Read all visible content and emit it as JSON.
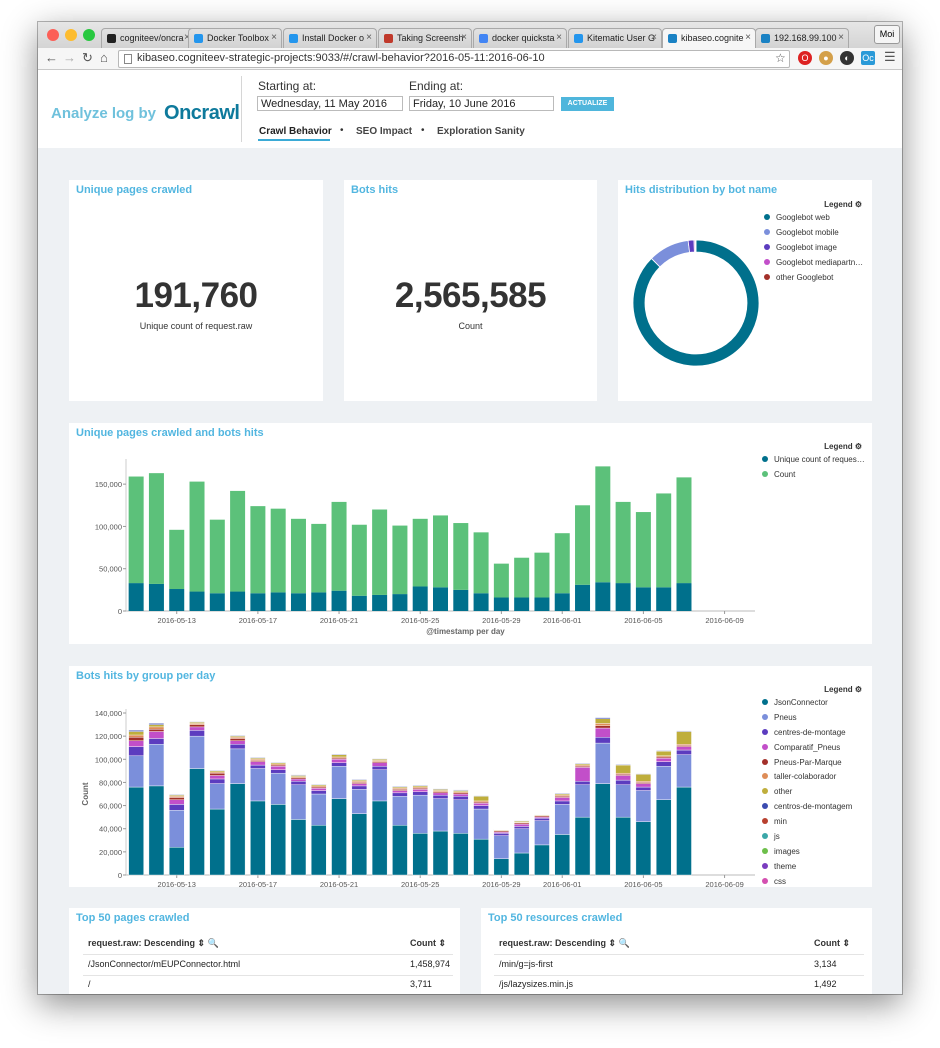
{
  "browser": {
    "tabs": [
      {
        "label": "cogniteev/oncra",
        "color": "#222222"
      },
      {
        "label": "Docker Toolbox",
        "color": "#2496ed"
      },
      {
        "label": "Install Docker o",
        "color": "#2496ed"
      },
      {
        "label": "Taking Screensh",
        "color": "#c0392b"
      },
      {
        "label": "docker quicksta",
        "color": "#4285f4"
      },
      {
        "label": "Kitematic User G",
        "color": "#2496ed"
      },
      {
        "label": "kibaseo.cognite",
        "color": "#1a82c4"
      },
      {
        "label": "192.168.99.100",
        "color": "#1a82c4"
      }
    ],
    "profile": "Moi",
    "url": "kibaseo.cogniteev-strategic-projects:9033/#/crawl-behavior?2016-05-11:2016-06-10"
  },
  "header": {
    "logo_prefix": "Analyze log by",
    "logo_brand": "Oncrawl",
    "start_label": "Starting at:",
    "start_value": "Wednesday, 11 May 2016",
    "end_label": "Ending at:",
    "end_value": "Friday, 10 June 2016",
    "actualize_label": "ACTUALIZE",
    "nav": [
      "Crawl Behavior",
      "SEO Impact",
      "Exploration Sanity"
    ]
  },
  "panels": {
    "unique_pages": {
      "title": "Unique pages crawled",
      "value": "191,760",
      "subtitle": "Unique count of request.raw"
    },
    "bots_hits": {
      "title": "Bots hits",
      "value": "2,565,585",
      "subtitle": "Count"
    },
    "hits_distribution": {
      "title": "Hits distribution by bot name",
      "legend_title": "Legend ⚙",
      "legend": [
        {
          "name": "Googlebot web",
          "color": "#00708c"
        },
        {
          "name": "Googlebot mobile",
          "color": "#7b8fdb"
        },
        {
          "name": "Googlebot image",
          "color": "#5c3cbf"
        },
        {
          "name": "Googlebot mediapartn…",
          "color": "#c24fc9"
        },
        {
          "name": "other Googlebot",
          "color": "#a3302a"
        }
      ]
    },
    "pages_and_hits": {
      "title": "Unique pages crawled and bots hits",
      "legend_title": "Legend ⚙"
    },
    "hits_by_group": {
      "title": "Bots hits by group per day",
      "legend_title": "Legend ⚙"
    },
    "top_pages": {
      "title": "Top 50 pages crawled",
      "col1": "request.raw: Descending ⇕ 🔍",
      "col2": "Count ⇕",
      "rows": [
        {
          "url": "/JsonConnector/mEUPConnector.html",
          "count": "1,458,974"
        },
        {
          "url": "/",
          "count": "3,711"
        }
      ]
    },
    "top_resources": {
      "title": "Top 50 resources crawled",
      "col1": "request.raw: Descending ⇕ 🔍",
      "col2": "Count ⇕",
      "rows": [
        {
          "url": "/min/g=js-first",
          "count": "3,134"
        },
        {
          "url": "/js/lazysizes.min.js",
          "count": "1,492"
        }
      ]
    }
  },
  "chart_data": [
    {
      "type": "pie",
      "title": "Hits distribution by bot name",
      "labels": [
        "Googlebot web",
        "Googlebot mobile",
        "Googlebot image",
        "Googlebot mediapartn…",
        "other Googlebot"
      ],
      "values": [
        87.5,
        10.5,
        1.5,
        0.3,
        0.2
      ],
      "colors": [
        "#00708c",
        "#7b8fdb",
        "#5c3cbf",
        "#c24fc9",
        "#a3302a"
      ]
    },
    {
      "type": "bar",
      "title": "Unique pages crawled and bots hits",
      "xlabel": "@timestamp per day",
      "ylabel": "",
      "ylim": [
        0,
        175000
      ],
      "yticks": [
        0,
        50000,
        100000,
        150000
      ],
      "ytick_labels": [
        "0",
        "50,000",
        "100,000",
        "150,000"
      ],
      "xtick_labels": [
        "2016-05-13",
        "2016-05-17",
        "2016-05-21",
        "2016-05-25",
        "2016-05-29",
        "2016-06-01",
        "2016-06-05",
        "2016-06-09"
      ],
      "xtick_index": [
        2,
        6,
        10,
        14,
        18,
        21,
        25,
        29
      ],
      "days": 31,
      "series": [
        {
          "name": "Unique count of reques…",
          "color": "#00708c",
          "values": [
            33000,
            32000,
            26000,
            23000,
            21000,
            23000,
            21000,
            22000,
            21000,
            22000,
            24000,
            18000,
            19000,
            20000,
            29000,
            28000,
            25000,
            21000,
            16000,
            16000,
            16000,
            21000,
            31000,
            34000,
            33000,
            28000,
            28000,
            33000
          ]
        },
        {
          "name": "Count",
          "color": "#5cc17a",
          "values": [
            126000,
            131000,
            70000,
            130000,
            87000,
            119000,
            103000,
            99000,
            88000,
            81000,
            105000,
            84000,
            101000,
            81000,
            80000,
            85000,
            79000,
            72000,
            40000,
            47000,
            53000,
            71000,
            94000,
            137000,
            96000,
            89000,
            111000,
            125000
          ]
        }
      ]
    },
    {
      "type": "bar",
      "title": "Bots hits by group per day",
      "xlabel": "@timestamp per day",
      "ylabel": "Count",
      "ylim": [
        0,
        140000
      ],
      "yticks": [
        0,
        20000,
        40000,
        60000,
        80000,
        100000,
        120000,
        140000
      ],
      "ytick_labels": [
        "0",
        "20,000",
        "40,000",
        "60,000",
        "80,000",
        "100,000",
        "120,000",
        "140,000"
      ],
      "xtick_labels": [
        "2016-05-13",
        "2016-05-17",
        "2016-05-21",
        "2016-05-25",
        "2016-05-29",
        "2016-06-01",
        "2016-06-05",
        "2016-06-09"
      ],
      "xtick_index": [
        2,
        6,
        10,
        14,
        18,
        21,
        25,
        29
      ],
      "days": 31,
      "series": [
        {
          "name": "JsonConnector",
          "color": "#00708c",
          "values": [
            76000,
            77000,
            24000,
            92000,
            57000,
            79000,
            64000,
            61000,
            48000,
            43000,
            66000,
            53000,
            64000,
            43000,
            36000,
            38000,
            36000,
            31000,
            14000,
            19000,
            26000,
            35000,
            50000,
            79000,
            50000,
            46000,
            65000,
            76000
          ]
        },
        {
          "name": "Pneus",
          "color": "#7b8fdb",
          "values": [
            27000,
            36000,
            32000,
            28000,
            22000,
            30000,
            28000,
            27000,
            30000,
            27000,
            28000,
            21000,
            27000,
            25000,
            33000,
            28000,
            29000,
            26000,
            20000,
            21000,
            21000,
            26000,
            28000,
            35000,
            28000,
            27000,
            29000,
            28000
          ]
        },
        {
          "name": "centres-de-montage",
          "color": "#5c3cbf",
          "values": [
            8000,
            5000,
            5000,
            5000,
            4000,
            4000,
            3000,
            3000,
            3000,
            3000,
            3000,
            3000,
            3000,
            3000,
            3000,
            3000,
            3000,
            3000,
            2000,
            2000,
            2000,
            3000,
            3000,
            5000,
            4000,
            3000,
            4000,
            4000
          ]
        },
        {
          "name": "Comparatif_Pneus",
          "color": "#c24fc9",
          "values": [
            5000,
            6000,
            4000,
            3000,
            3000,
            3000,
            3000,
            3000,
            2000,
            2000,
            3000,
            2000,
            3000,
            2000,
            2000,
            2000,
            2000,
            2000,
            1000,
            2000,
            1000,
            3000,
            12000,
            8000,
            4000,
            3000,
            3000,
            3000
          ]
        },
        {
          "name": "Pneus-Par-Marque",
          "color": "#a3302a",
          "values": [
            3000,
            2000,
            2000,
            2000,
            2000,
            2000,
            1000,
            1000,
            1000,
            1000,
            1000,
            1000,
            1000,
            1000,
            1000,
            1000,
            1000,
            1000,
            1000,
            1000,
            1000,
            1000,
            1000,
            2000,
            1000,
            1000,
            1000,
            1000
          ]
        },
        {
          "name": "taller-colaborador",
          "color": "#de8d58",
          "values": [
            2000,
            2000,
            1000,
            1000,
            1000,
            1000,
            1000,
            1000,
            1000,
            1000,
            1000,
            1000,
            1000,
            1000,
            1000,
            1000,
            1000,
            1000,
            500,
            500,
            500,
            1000,
            1000,
            2000,
            1000,
            1000,
            1000,
            1000
          ]
        },
        {
          "name": "other",
          "color": "#bfae3c",
          "values": [
            3000,
            2000,
            1000,
            1000,
            1000,
            1000,
            1000,
            1000,
            1000,
            1000,
            2000,
            1000,
            1000,
            1000,
            1000,
            1000,
            1000,
            4000,
            500,
            1000,
            500,
            1000,
            1000,
            4000,
            7000,
            6000,
            4000,
            11000
          ]
        },
        {
          "name": "centros-de-montagem",
          "color": "#3b4bb0",
          "values": [
            1000,
            1000,
            500,
            500,
            500,
            500,
            500,
            500,
            500,
            500,
            500,
            500,
            500,
            500,
            500,
            500,
            500,
            500,
            300,
            300,
            300,
            500,
            500,
            1000,
            500,
            500,
            500,
            500
          ]
        }
      ],
      "legend_extra": [
        {
          "name": "min",
          "color": "#b8402e"
        },
        {
          "name": "js",
          "color": "#3ba7a8"
        },
        {
          "name": "images",
          "color": "#6dbf4a"
        },
        {
          "name": "theme",
          "color": "#7a3cbf"
        },
        {
          "name": "css",
          "color": "#d44fb0"
        }
      ]
    }
  ]
}
